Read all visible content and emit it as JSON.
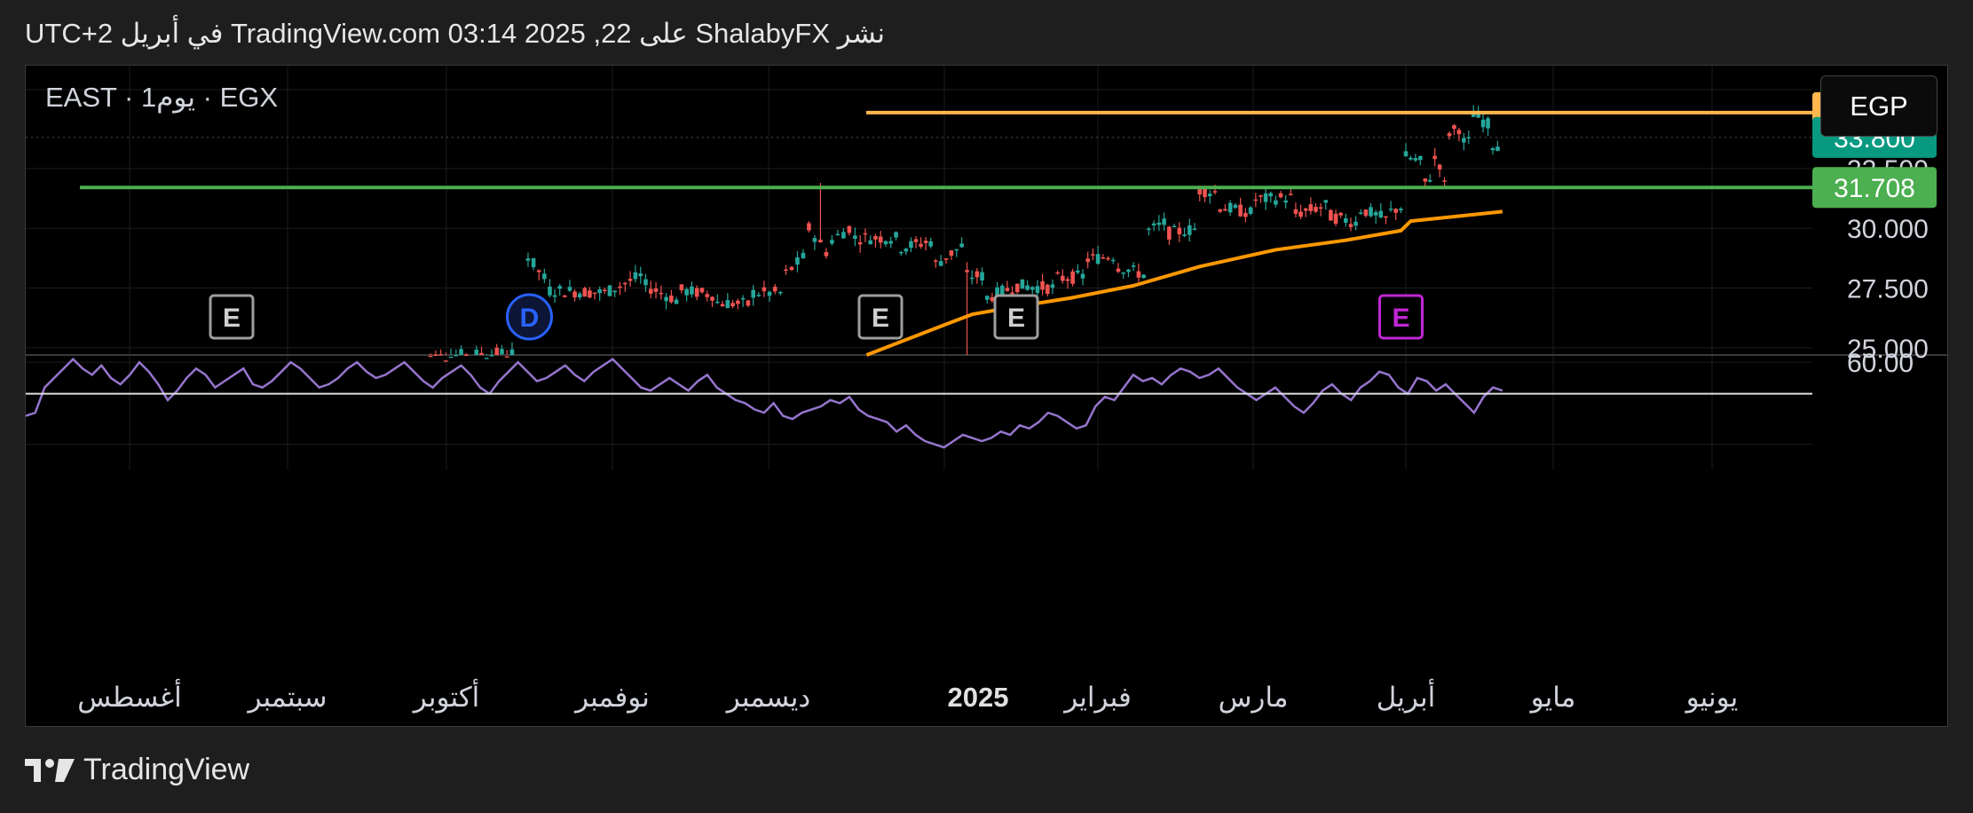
{
  "header": {
    "text": "نشر ShalabyFX على TradingView.com 03:14 2025 ,22 في أبريل UTC+2"
  },
  "footer": {
    "brand": "TradingView"
  },
  "currency": "EGP",
  "colors": {
    "up": "#26a69a",
    "down": "#ef5350",
    "resistance": "#ffb74d",
    "support": "#4caf50",
    "ma": "#ff9800",
    "rsi": "#9575cd",
    "last_price": "#089981"
  },
  "chart_data": {
    "type": "candlestick",
    "symbol_line": "EAST · 1يوم · EGX",
    "price_axis": {
      "ticks": [
        "25.000",
        "27.500",
        "30.000",
        "32.500"
      ],
      "range": [
        24.7,
        36.8
      ]
    },
    "rsi_axis": {
      "ticks": [
        "60.00"
      ],
      "range": [
        26,
        62
      ],
      "line_level": 50
    },
    "time_axis": {
      "labels": [
        "أغسطس",
        "سبتمبر",
        "أكتوبر",
        "نوفمبر",
        "ديسمبر",
        "2025",
        "فبراير",
        "مارس",
        "أبريل",
        "مايو",
        "يونيو"
      ],
      "bold": [
        "2025"
      ]
    },
    "levels": [
      {
        "name": "resistance",
        "value": 34.837,
        "label": "34.837",
        "color": "#ffb74d"
      },
      {
        "name": "last",
        "value": 33.8,
        "label": "33.800",
        "color": "#089981"
      },
      {
        "name": "support",
        "value": 31.708,
        "label": "31.708",
        "color": "#4caf50"
      }
    ],
    "events": [
      {
        "letter": "E",
        "date_index": 0.12,
        "kind": "earnings"
      },
      {
        "letter": "D",
        "date_index": 0.285,
        "kind": "dividend"
      },
      {
        "letter": "E",
        "date_index": 0.55,
        "kind": "earnings"
      },
      {
        "letter": "E",
        "date_index": 0.64,
        "kind": "earnings"
      },
      {
        "letter": "E",
        "date_index": 0.895,
        "kind": "earnings-upcoming"
      }
    ],
    "candles_segments": [
      [
        "2024-09-26",
        24.0,
        24.6
      ],
      [
        "2024-10-14",
        24.8,
        26.3
      ],
      [
        "2024-10-16",
        27.6,
        28.8
      ],
      [
        "2024-10-20",
        27.6,
        27.4
      ],
      [
        "2024-10-31",
        27.3,
        27.4
      ],
      [
        "2024-11-07",
        28.1,
        27.6
      ],
      [
        "2024-11-14",
        26.9,
        27.4
      ],
      [
        "2024-11-21",
        27.2,
        26.9
      ],
      [
        "2024-11-28",
        26.8,
        27.3
      ],
      [
        "2024-12-04",
        27.3,
        28.1
      ],
      [
        "2024-12-08",
        29.0,
        30.0
      ],
      [
        "2024-12-12",
        28.7,
        29.5
      ],
      [
        "2024-12-16",
        30.2,
        29.6
      ],
      [
        "2024-12-24",
        29.6,
        29.2
      ],
      [
        "2024-12-30",
        29.5,
        28.5
      ],
      [
        "2025-01-05",
        29.4,
        28.0
      ],
      [
        "2025-01-09",
        28.0,
        27.1
      ],
      [
        "2025-01-15",
        27.6,
        27.6
      ],
      [
        "2025-01-23",
        27.5,
        27.9
      ],
      [
        "2025-01-29",
        28.0,
        28.7
      ],
      [
        "2025-02-04",
        28.9,
        28.4
      ],
      [
        "2025-02-10",
        28.0,
        29.9
      ],
      [
        "2025-02-14",
        30.3,
        29.8
      ],
      [
        "2025-02-20",
        30.0,
        31.6
      ],
      [
        "2025-02-24",
        31.5,
        30.9
      ],
      [
        "2025-03-03",
        30.6,
        31.2
      ],
      [
        "2025-03-11",
        31.3,
        30.6
      ],
      [
        "2025-03-18",
        31.0,
        30.5
      ],
      [
        "2025-03-24",
        30.2,
        30.8
      ],
      [
        "2025-03-30",
        30.3,
        30.7
      ],
      [
        "2025-04-02",
        31.0,
        33.0
      ],
      [
        "2025-04-06",
        32.7,
        31.9
      ],
      [
        "2025-04-08",
        32.4,
        32.9
      ],
      [
        "2025-04-10",
        32.5,
        31.8
      ],
      [
        "2025-04-11",
        32.0,
        34.0
      ],
      [
        "2025-04-14",
        34.3,
        33.6
      ],
      [
        "2025-04-16",
        33.6,
        34.8
      ],
      [
        "2025-04-20",
        34.2,
        33.5
      ],
      [
        "2025-04-22",
        33.5,
        33.8
      ]
    ],
    "ma_line": [
      [
        "2024-12-18",
        24.7
      ],
      [
        "2025-01-01",
        26.0
      ],
      [
        "2025-01-06",
        26.4
      ],
      [
        "2025-01-14",
        26.7
      ],
      [
        "2025-01-26",
        27.1
      ],
      [
        "2025-02-07",
        27.6
      ],
      [
        "2025-02-20",
        28.4
      ],
      [
        "2025-03-07",
        29.1
      ],
      [
        "2025-03-21",
        29.5
      ],
      [
        "2025-04-01",
        29.9
      ],
      [
        "2025-04-03",
        30.3
      ],
      [
        "2025-04-22",
        30.7
      ]
    ],
    "rsi_values": [
      43,
      44,
      52,
      55,
      58,
      61,
      58,
      56,
      59,
      55,
      53,
      56,
      60,
      57,
      53,
      48,
      51,
      55,
      58,
      56,
      52,
      54,
      56,
      58,
      53,
      52,
      54,
      57,
      60,
      58,
      55,
      52,
      53,
      55,
      58,
      60,
      57,
      55,
      56,
      58,
      60,
      57,
      54,
      52,
      55,
      57,
      59,
      56,
      52,
      50,
      54,
      57,
      60,
      57,
      54,
      55,
      57,
      59,
      56,
      54,
      57,
      59,
      61,
      58,
      55,
      52,
      51,
      53,
      55,
      53,
      51,
      54,
      56,
      52,
      50,
      48,
      47,
      45,
      44,
      47,
      43,
      42,
      44,
      45,
      46,
      48,
      47,
      49,
      45,
      43,
      42,
      41,
      38,
      40,
      37,
      35,
      34,
      33,
      35,
      37,
      36,
      35,
      36,
      38,
      37,
      40,
      39,
      41,
      44,
      43,
      41,
      39,
      40,
      46,
      49,
      48,
      52,
      56,
      54,
      55,
      53,
      56,
      58,
      57,
      55,
      56,
      58,
      55,
      52,
      50,
      48,
      50,
      52,
      49,
      46,
      44,
      47,
      51,
      53,
      50,
      48,
      52,
      54,
      57,
      56,
      52,
      50,
      55,
      54,
      51,
      53,
      50,
      47,
      44,
      49,
      52,
      51
    ]
  }
}
